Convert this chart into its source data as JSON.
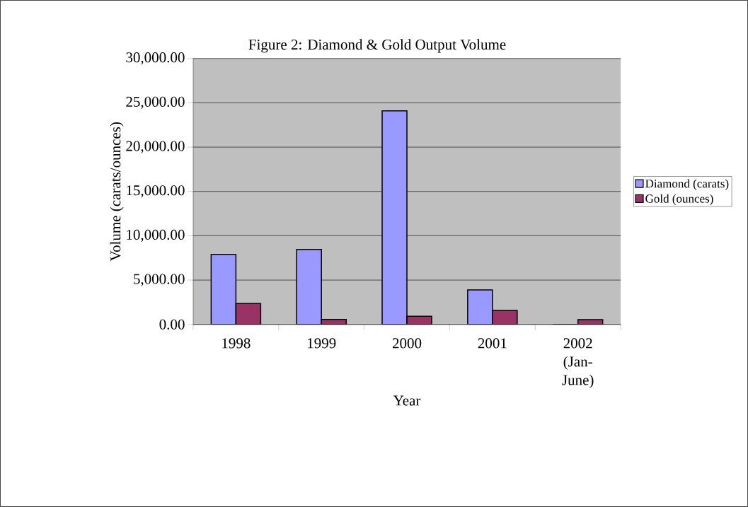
{
  "chart_data": {
    "type": "bar",
    "title": "Figure 2: Diamond & Gold Output Volume",
    "xlabel": "Year",
    "ylabel": "Volume (carats/ounces)",
    "categories": [
      "1998",
      "1999",
      "2000",
      "2001",
      "2002 (Jan-June)"
    ],
    "series": [
      {
        "name": "Diamond (carats)",
        "color": "#9999ff",
        "values": [
          7900,
          8450,
          24100,
          3900,
          0
        ]
      },
      {
        "name": "Gold (ounces)",
        "color": "#993366",
        "values": [
          2350,
          570,
          920,
          1580,
          540
        ]
      }
    ],
    "ylim": [
      0,
      30000
    ],
    "yticks": [
      {
        "value": 0,
        "label": "0.00"
      },
      {
        "value": 5000,
        "label": "5,000.00"
      },
      {
        "value": 10000,
        "label": "10,000.00"
      },
      {
        "value": 15000,
        "label": "15,000.00"
      },
      {
        "value": 20000,
        "label": "20,000.00"
      },
      {
        "value": 25000,
        "label": "25,000.00"
      },
      {
        "value": 30000,
        "label": "30,000.00"
      }
    ],
    "grid": "y",
    "legend": "right"
  }
}
